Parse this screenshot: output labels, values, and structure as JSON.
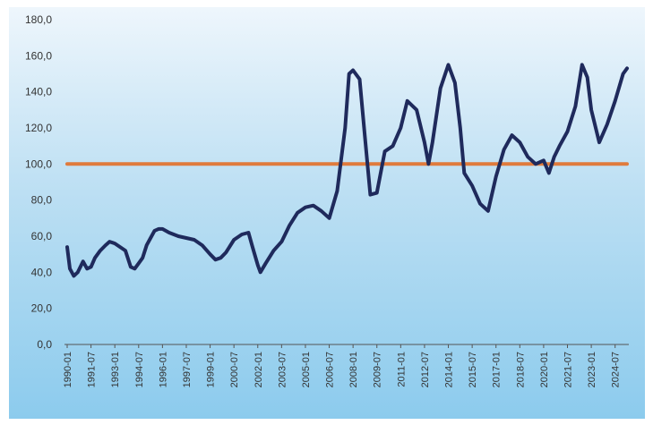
{
  "chart_data": {
    "type": "line",
    "title": "",
    "xlabel": "",
    "ylabel": "",
    "ylim": [
      0,
      180
    ],
    "y_ticks": [
      "0,0",
      "20,0",
      "40,0",
      "60,0",
      "80,0",
      "100,0",
      "120,0",
      "140,0",
      "160,0",
      "180,0"
    ],
    "x_ticks": [
      "1990-01",
      "1991-07",
      "1993-01",
      "1994-07",
      "1996-01",
      "1997-07",
      "1999-01",
      "2000-07",
      "2002-01",
      "2003-07",
      "2005-01",
      "2006-07",
      "2008-01",
      "2009-07",
      "2011-01",
      "2012-07",
      "2014-01",
      "2015-07",
      "2017-01",
      "2018-07",
      "2020-01",
      "2021-07",
      "2023-01",
      "2024-07"
    ],
    "grid": false,
    "legend": "none",
    "background": "light-blue gradient",
    "series": [
      {
        "color": "#1f2a5c",
        "points": [
          [
            "1990-01",
            54
          ],
          [
            "1990-03",
            42
          ],
          [
            "1990-06",
            38
          ],
          [
            "1990-09",
            40
          ],
          [
            "1991-01",
            46
          ],
          [
            "1991-04",
            42
          ],
          [
            "1991-07",
            43
          ],
          [
            "1991-10",
            48
          ],
          [
            "1992-02",
            52
          ],
          [
            "1992-06",
            55
          ],
          [
            "1992-09",
            57
          ],
          [
            "1993-01",
            56
          ],
          [
            "1993-05",
            54
          ],
          [
            "1993-09",
            52
          ],
          [
            "1994-01",
            43
          ],
          [
            "1994-04",
            42
          ],
          [
            "1994-07",
            45
          ],
          [
            "1994-10",
            48
          ],
          [
            "1995-01",
            55
          ],
          [
            "1995-04",
            59
          ],
          [
            "1995-07",
            63
          ],
          [
            "1995-10",
            64
          ],
          [
            "1996-01",
            64
          ],
          [
            "1996-06",
            62
          ],
          [
            "1997-01",
            60
          ],
          [
            "1997-07",
            59
          ],
          [
            "1998-01",
            58
          ],
          [
            "1998-07",
            55
          ],
          [
            "1999-01",
            50
          ],
          [
            "1999-05",
            47
          ],
          [
            "1999-09",
            48
          ],
          [
            "2000-01",
            51
          ],
          [
            "2000-07",
            58
          ],
          [
            "2001-01",
            61
          ],
          [
            "2001-06",
            62
          ],
          [
            "2001-09",
            54
          ],
          [
            "2002-01",
            44
          ],
          [
            "2002-03",
            40
          ],
          [
            "2002-07",
            45
          ],
          [
            "2003-01",
            52
          ],
          [
            "2003-07",
            57
          ],
          [
            "2004-01",
            66
          ],
          [
            "2004-07",
            73
          ],
          [
            "2005-01",
            76
          ],
          [
            "2005-07",
            77
          ],
          [
            "2006-01",
            74
          ],
          [
            "2006-07",
            70
          ],
          [
            "2007-01",
            85
          ],
          [
            "2007-07",
            120
          ],
          [
            "2007-10",
            150
          ],
          [
            "2008-01",
            152
          ],
          [
            "2008-06",
            147
          ],
          [
            "2008-10",
            115
          ],
          [
            "2009-02",
            83
          ],
          [
            "2009-07",
            84
          ],
          [
            "2010-01",
            107
          ],
          [
            "2010-07",
            110
          ],
          [
            "2011-01",
            120
          ],
          [
            "2011-06",
            135
          ],
          [
            "2012-01",
            130
          ],
          [
            "2012-07",
            112
          ],
          [
            "2012-10",
            100
          ],
          [
            "2013-01",
            112
          ],
          [
            "2013-07",
            142
          ],
          [
            "2014-01",
            155
          ],
          [
            "2014-06",
            145
          ],
          [
            "2014-10",
            120
          ],
          [
            "2015-01",
            95
          ],
          [
            "2015-07",
            88
          ],
          [
            "2016-01",
            78
          ],
          [
            "2016-07",
            74
          ],
          [
            "2017-01",
            93
          ],
          [
            "2017-07",
            108
          ],
          [
            "2018-01",
            116
          ],
          [
            "2018-07",
            112
          ],
          [
            "2019-01",
            104
          ],
          [
            "2019-07",
            100
          ],
          [
            "2020-01",
            102
          ],
          [
            "2020-05",
            95
          ],
          [
            "2020-09",
            104
          ],
          [
            "2021-01",
            110
          ],
          [
            "2021-07",
            118
          ],
          [
            "2022-01",
            132
          ],
          [
            "2022-06",
            155
          ],
          [
            "2022-10",
            148
          ],
          [
            "2023-01",
            130
          ],
          [
            "2023-07",
            112
          ],
          [
            "2024-01",
            122
          ],
          [
            "2024-07",
            135
          ],
          [
            "2025-01",
            150
          ],
          [
            "2025-04",
            153
          ]
        ]
      },
      {
        "color": "#e07b3c",
        "points": [
          [
            "1990-01",
            100
          ],
          [
            "2025-04",
            100
          ]
        ]
      }
    ]
  }
}
